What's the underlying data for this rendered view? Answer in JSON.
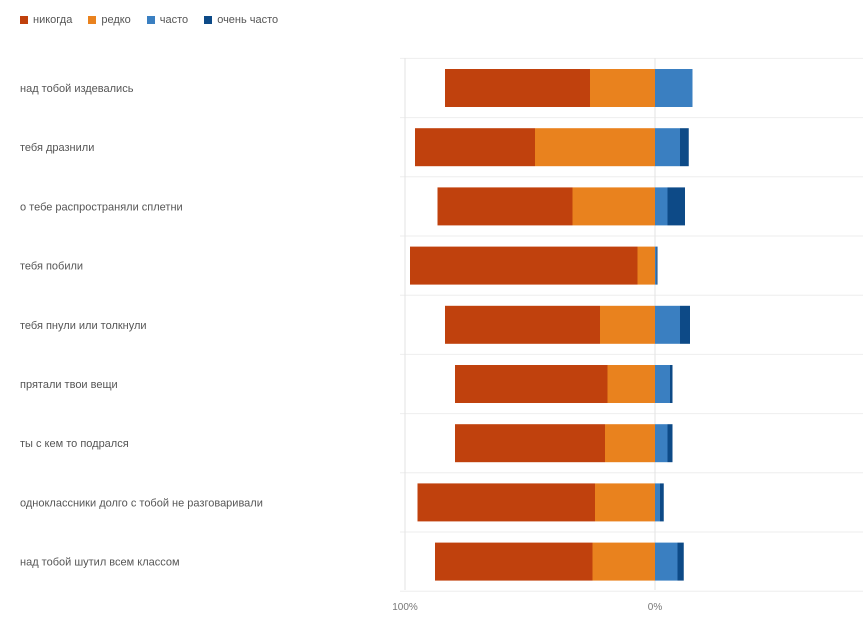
{
  "chart_data": {
    "type": "bar",
    "orientation": "horizontal",
    "stacked": "diverging",
    "categories": [
      "над тобой издевались",
      "тебя дразнили",
      "о тебе распространяли сплетни",
      "тебя побили",
      "тебя пнули или толкнули",
      "прятали твои вещи",
      "ты с кем то подрался",
      "одноклассники долго с тобой не разговаривали",
      "над тобой шутил всем классом"
    ],
    "series": [
      {
        "name": "никогда",
        "color": "#c0410d",
        "side": "left",
        "values": [
          58,
          48,
          54,
          91,
          62,
          61,
          60,
          71,
          63
        ]
      },
      {
        "name": "редко",
        "color": "#e9821e",
        "side": "left",
        "values": [
          26,
          48,
          33,
          7,
          22,
          19,
          20,
          24,
          25
        ]
      },
      {
        "name": "часто",
        "color": "#3a7fc1",
        "side": "right",
        "values": [
          15,
          10,
          5,
          0.5,
          10,
          6,
          5,
          2,
          9
        ]
      },
      {
        "name": "очень часто",
        "color": "#0d4a87",
        "side": "right",
        "values": [
          0,
          3.5,
          7,
          0.5,
          4,
          1,
          2,
          1.5,
          2.5
        ]
      }
    ],
    "x_ticks": [
      "100%",
      "0%"
    ],
    "xlim": [
      -100,
      100
    ],
    "grid": true,
    "legend_position": "top-left"
  }
}
